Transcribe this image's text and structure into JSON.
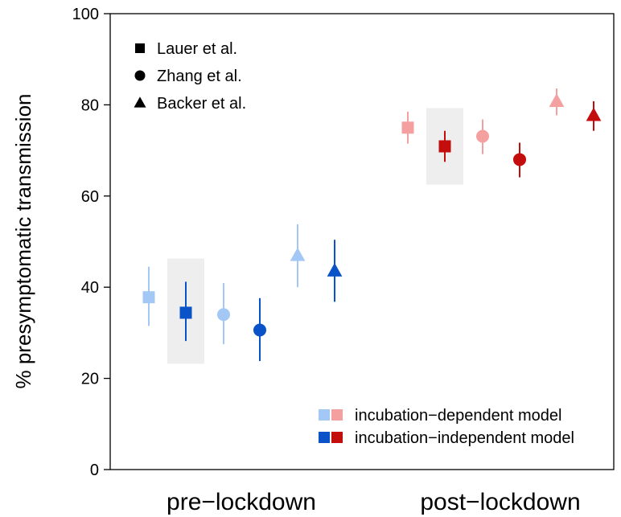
{
  "chart_data": {
    "type": "scatter",
    "ylabel": "% presymptomatic transmission",
    "ylim": [
      0,
      100
    ],
    "yticks": [
      0,
      20,
      40,
      60,
      80,
      100
    ],
    "categories": [
      "pre−lockdown",
      "post−lockdown"
    ],
    "grid": false,
    "legend_markers": [
      {
        "marker": "square",
        "label": "Lauer et al."
      },
      {
        "marker": "circle",
        "label": "Zhang et al."
      },
      {
        "marker": "triangle",
        "label": "Backer et al."
      }
    ],
    "legend_models": [
      {
        "label": "incubation−dependent model",
        "colors": [
          "#a3c8f5",
          "#f5a0a0"
        ]
      },
      {
        "label": "incubation−independent model",
        "colors": [
          "#0a52c8",
          "#c40d0d"
        ]
      }
    ],
    "series": [
      {
        "category": "pre−lockdown",
        "study": "Lauer et al.",
        "model": "incubation−dependent",
        "marker": "square",
        "color": "#a3c8f5",
        "value": 37.8,
        "low": 31.5,
        "high": 44.5
      },
      {
        "category": "pre−lockdown",
        "study": "Lauer et al.",
        "model": "incubation−independent",
        "marker": "square",
        "color": "#0a52c8",
        "value": 34.4,
        "low": 28.2,
        "high": 41.2,
        "highlighted": true,
        "box": [
          23.2,
          46.3
        ]
      },
      {
        "category": "pre−lockdown",
        "study": "Zhang et al.",
        "model": "incubation−dependent",
        "marker": "circle",
        "color": "#a3c8f5",
        "value": 34.0,
        "low": 27.5,
        "high": 40.9
      },
      {
        "category": "pre−lockdown",
        "study": "Zhang et al.",
        "model": "incubation−independent",
        "marker": "circle",
        "color": "#0a52c8",
        "value": 30.6,
        "low": 23.8,
        "high": 37.6
      },
      {
        "category": "pre−lockdown",
        "study": "Backer et al.",
        "model": "incubation−dependent",
        "marker": "triangle",
        "color": "#a3c8f5",
        "value": 47.0,
        "low": 40.0,
        "high": 53.8
      },
      {
        "category": "pre−lockdown",
        "study": "Backer et al.",
        "model": "incubation−independent",
        "marker": "triangle",
        "color": "#0a52c8",
        "value": 43.6,
        "low": 36.8,
        "high": 50.4
      },
      {
        "category": "post−lockdown",
        "study": "Lauer et al.",
        "model": "incubation−dependent",
        "marker": "square",
        "color": "#f5a0a0",
        "value": 75.0,
        "low": 71.5,
        "high": 78.5
      },
      {
        "category": "post−lockdown",
        "study": "Lauer et al.",
        "model": "incubation−independent",
        "marker": "square",
        "color": "#c40d0d",
        "value": 70.9,
        "low": 67.5,
        "high": 74.3,
        "highlighted": true,
        "box": [
          62.5,
          79.3
        ]
      },
      {
        "category": "post−lockdown",
        "study": "Zhang et al.",
        "model": "incubation−dependent",
        "marker": "circle",
        "color": "#f5a0a0",
        "value": 73.1,
        "low": 69.2,
        "high": 76.8
      },
      {
        "category": "post−lockdown",
        "study": "Zhang et al.",
        "model": "incubation−independent",
        "marker": "circle",
        "color": "#c40d0d",
        "value": 68.0,
        "low": 64.1,
        "high": 71.7
      },
      {
        "category": "post−lockdown",
        "study": "Backer et al.",
        "model": "incubation−dependent",
        "marker": "triangle",
        "color": "#f5a0a0",
        "value": 80.8,
        "low": 77.7,
        "high": 83.6
      },
      {
        "category": "post−lockdown",
        "study": "Backer et al.",
        "model": "incubation−independent",
        "marker": "triangle",
        "color": "#c40d0d",
        "value": 77.7,
        "low": 74.3,
        "high": 80.8
      }
    ]
  }
}
